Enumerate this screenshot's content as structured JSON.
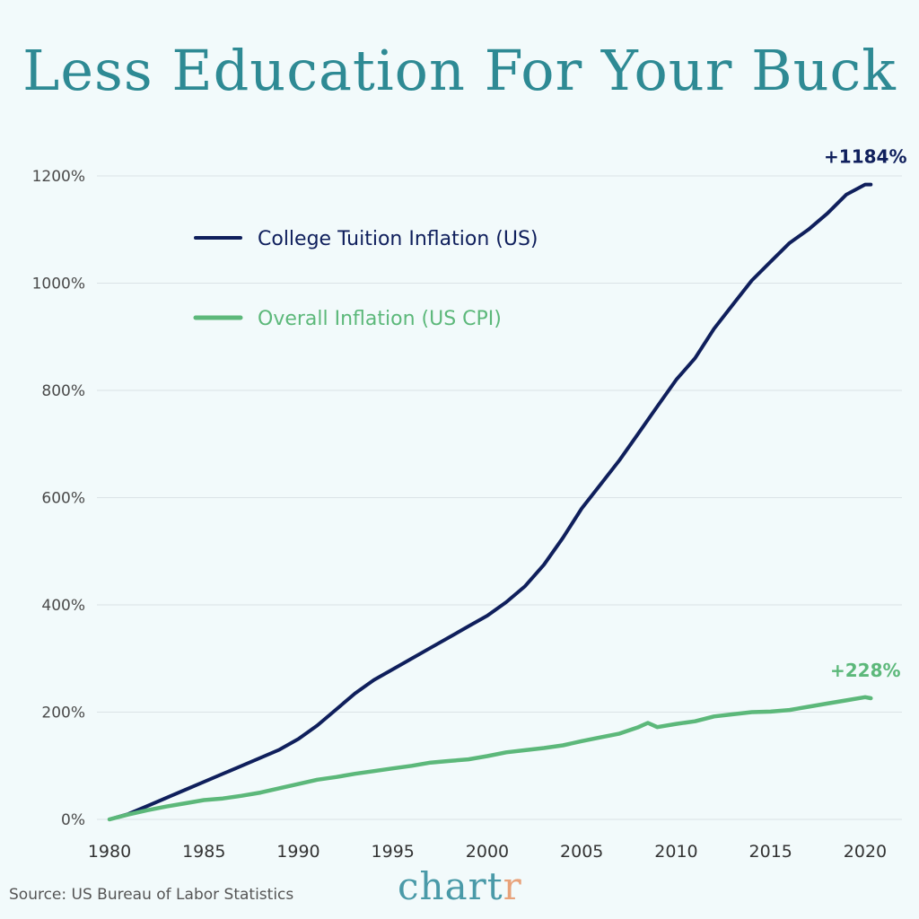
{
  "chart_data": {
    "type": "line",
    "title": "Less Education For Your Buck",
    "xlabel": "",
    "ylabel": "",
    "xlim": [
      1980,
      2021
    ],
    "ylim": [
      0,
      1200
    ],
    "yticks": [
      0,
      200,
      400,
      600,
      800,
      1000,
      1200
    ],
    "ytick_labels": [
      "0%",
      "200%",
      "400%",
      "600%",
      "800%",
      "1000%",
      "1200%"
    ],
    "xticks": [
      1980,
      1985,
      1990,
      1995,
      2000,
      2005,
      2010,
      2015,
      2020
    ],
    "xtick_labels": [
      "1980",
      "1985",
      "1990",
      "1995",
      "2000",
      "2005",
      "2010",
      "2015",
      "2020"
    ],
    "grid": "horizontal",
    "legend": "top-left",
    "series": [
      {
        "name": "College Tuition Inflation (US)",
        "color": "#0f1f5c",
        "end_label": "+1184%",
        "x": [
          1980,
          1981,
          1982,
          1983,
          1984,
          1985,
          1986,
          1987,
          1988,
          1989,
          1990,
          1991,
          1992,
          1993,
          1994,
          1995,
          1996,
          1997,
          1998,
          1999,
          2000,
          2001,
          2002,
          2003,
          2004,
          2005,
          2006,
          2007,
          2008,
          2009,
          2010,
          2011,
          2012,
          2013,
          2014,
          2015,
          2016,
          2017,
          2018,
          2019,
          2020,
          2020.3
        ],
        "y": [
          0,
          10,
          25,
          40,
          55,
          70,
          85,
          100,
          115,
          130,
          150,
          175,
          205,
          235,
          260,
          280,
          300,
          320,
          340,
          360,
          380,
          405,
          435,
          475,
          525,
          580,
          625,
          670,
          720,
          770,
          820,
          860,
          915,
          960,
          1005,
          1040,
          1075,
          1100,
          1130,
          1165,
          1184,
          1184
        ]
      },
      {
        "name": "Overall Inflation (US CPI)",
        "color": "#5cb87a",
        "end_label": "+228%",
        "x": [
          1980,
          1981,
          1982,
          1983,
          1984,
          1985,
          1986,
          1987,
          1988,
          1989,
          1990,
          1991,
          1992,
          1993,
          1994,
          1995,
          1996,
          1997,
          1998,
          1999,
          2000,
          2001,
          2002,
          2003,
          2004,
          2005,
          2006,
          2007,
          2008,
          2008.5,
          2009,
          2010,
          2011,
          2012,
          2013,
          2014,
          2015,
          2016,
          2017,
          2018,
          2019,
          2020,
          2020.3
        ],
        "y": [
          0,
          9,
          17,
          24,
          30,
          36,
          39,
          44,
          50,
          58,
          66,
          74,
          79,
          85,
          90,
          95,
          100,
          106,
          109,
          112,
          118,
          125,
          129,
          133,
          138,
          146,
          153,
          160,
          172,
          180,
          172,
          178,
          183,
          192,
          196,
          200,
          201,
          204,
          210,
          216,
          222,
          228,
          226
        ]
      }
    ]
  },
  "source": "Source: US Bureau of Labor Statistics",
  "brand": {
    "main": "chart",
    "accent": "r"
  }
}
